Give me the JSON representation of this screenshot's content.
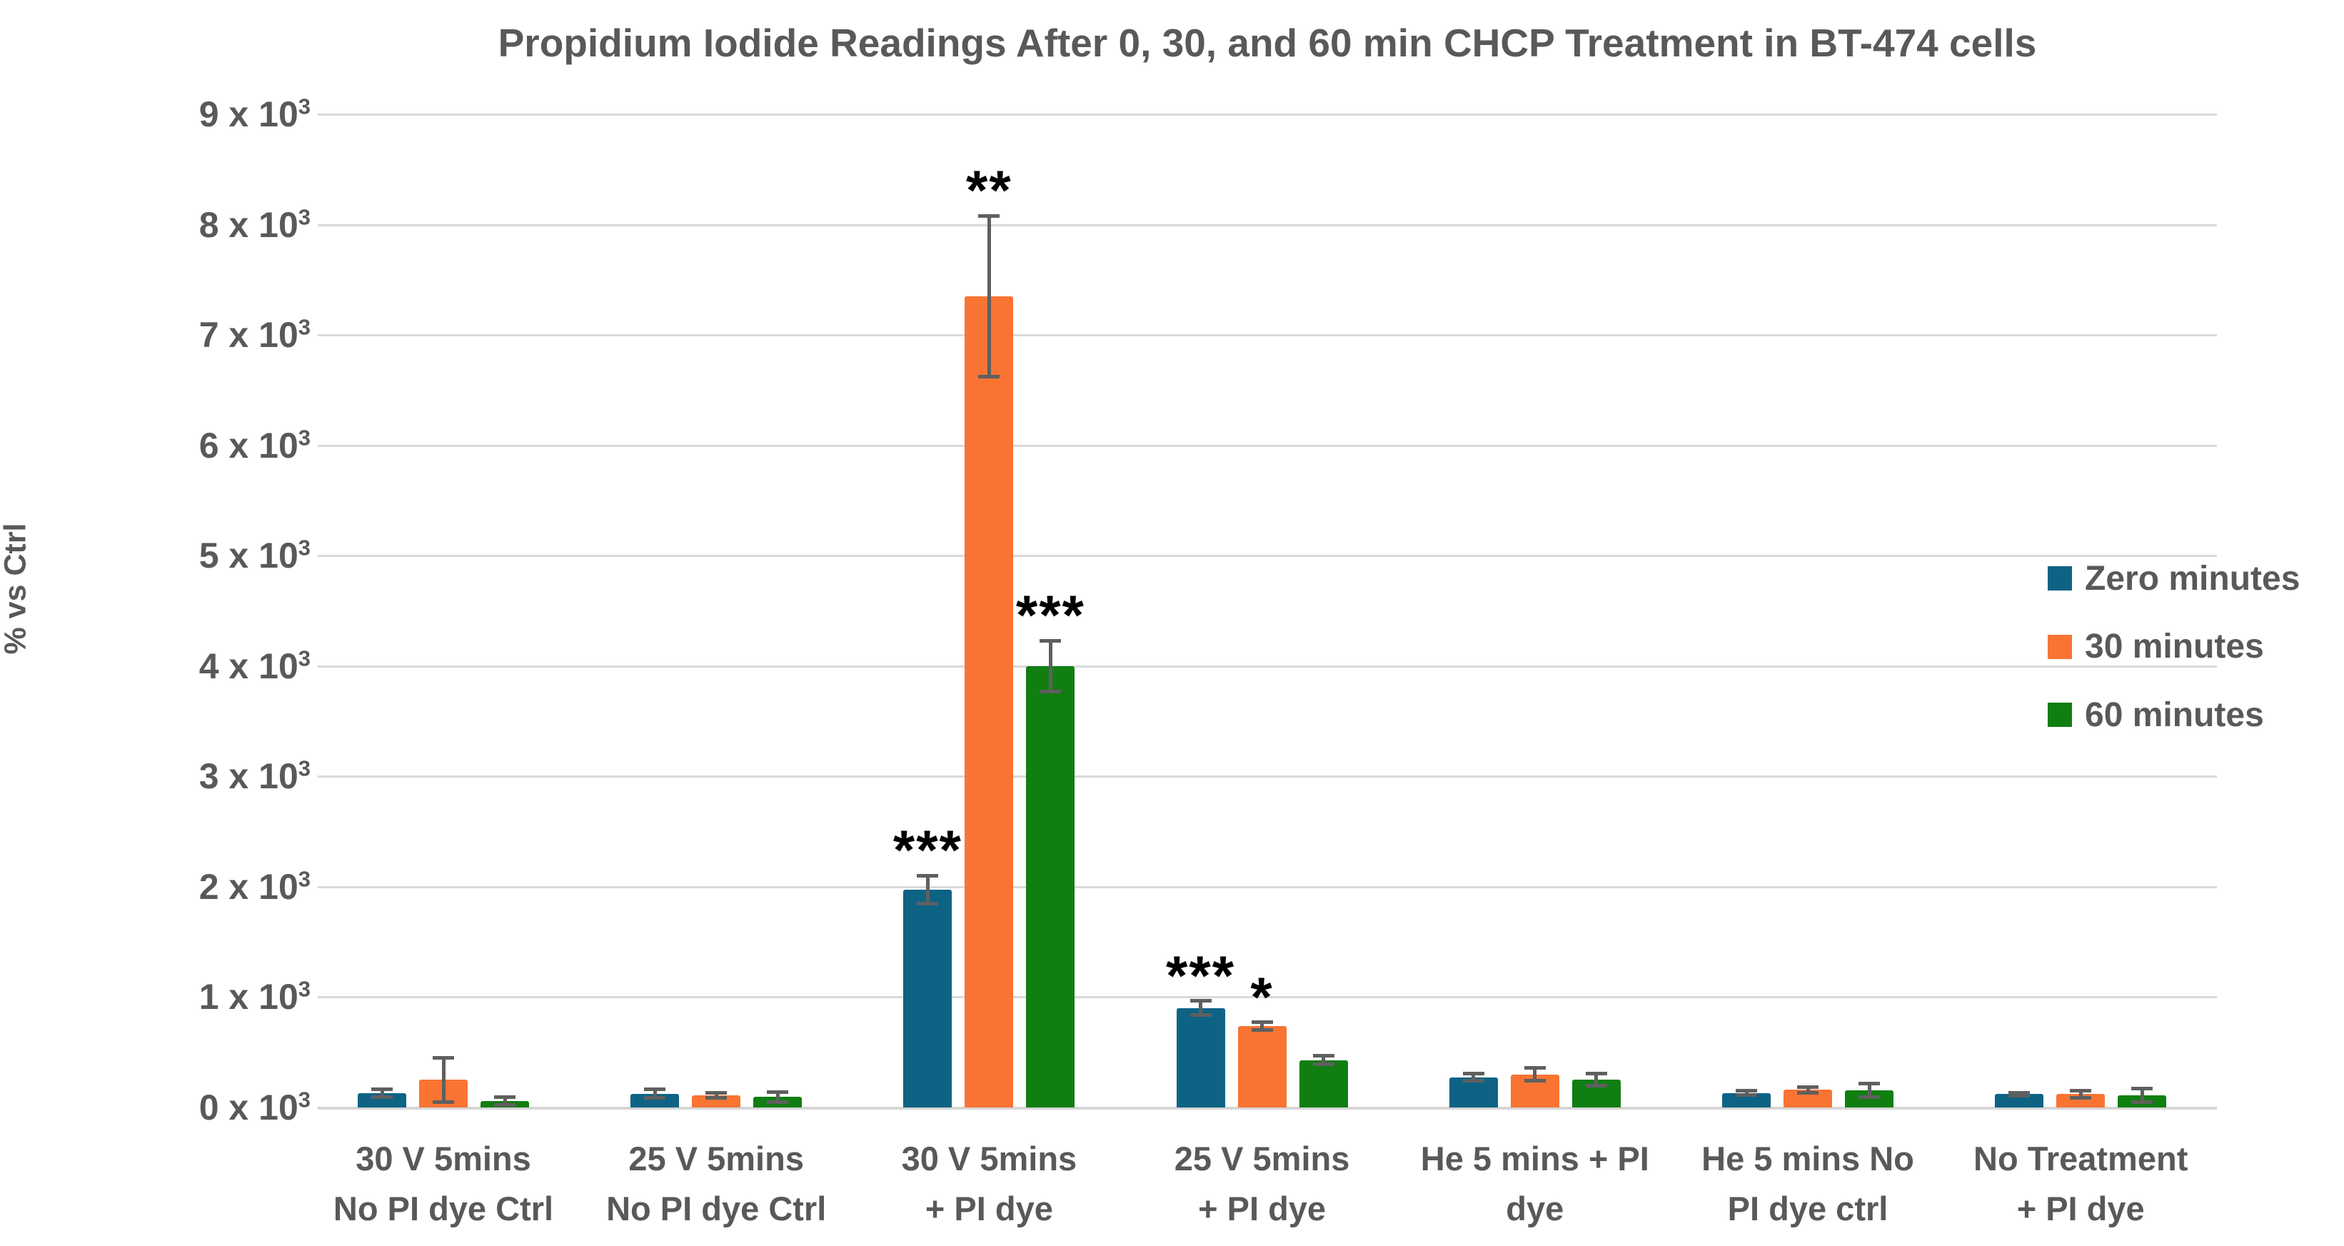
{
  "title": "Propidium Iodide Readings After 0, 30, and 60 min CHCP Treatment in BT-474 cells",
  "y_axis": {
    "label": "% vs Ctrl",
    "ticks": [
      "9 x 10^3",
      "8 x 10^3",
      "7 x 10^3",
      "6 x 10^3",
      "5 x 10^3",
      "4 x 10^3",
      "3 x 10^3",
      "2 x 10^3",
      "1 x 10^3",
      "0 x 10^3"
    ]
  },
  "legend": {
    "items": [
      {
        "label": "Zero minutes",
        "color": "#0e6385"
      },
      {
        "label": "30 minutes",
        "color": "#f97433"
      },
      {
        "label": "60 minutes",
        "color": "#107e11"
      }
    ]
  },
  "colors": {
    "text_gray": "#595959",
    "gridline": "#d9d9d9",
    "error_bar": "#5f5f5f",
    "significance": "#000000"
  },
  "chart_data": {
    "type": "bar",
    "title": "Propidium Iodide Readings After 0, 30, and 60 min CHCP Treatment in BT-474 cells",
    "xlabel": "",
    "ylabel": "% vs Ctrl",
    "ylim": [
      0,
      9000
    ],
    "grid": true,
    "legend_position": "right",
    "categories": [
      "30 V 5mins\nNo PI dye Ctrl",
      "25 V 5mins\nNo PI dye Ctrl",
      "30 V 5mins\n+ PI dye",
      "25 V 5mins\n+ PI dye",
      "He 5 mins + PI\ndye",
      "He 5 mins No\nPI dye ctrl",
      "No Treatment\n+ PI dye"
    ],
    "series": [
      {
        "name": "Zero minutes",
        "color": "#0e6385",
        "values": [
          130,
          125,
          1975,
          900,
          275,
          130,
          120
        ],
        "errors": [
          35,
          40,
          125,
          65,
          30,
          20,
          15
        ]
      },
      {
        "name": "30 minutes",
        "color": "#f97433",
        "values": [
          250,
          110,
          7350,
          735,
          300,
          160,
          120
        ],
        "errors": [
          200,
          25,
          730,
          35,
          60,
          25,
          30
        ]
      },
      {
        "name": "60 minutes",
        "color": "#107e11",
        "values": [
          60,
          95,
          4000,
          430,
          250,
          155,
          110
        ],
        "errors": [
          35,
          45,
          230,
          40,
          55,
          60,
          60
        ]
      }
    ],
    "significance": [
      {
        "category_index": 2,
        "series_index": 0,
        "stars": "***"
      },
      {
        "category_index": 2,
        "series_index": 1,
        "stars": "**"
      },
      {
        "category_index": 2,
        "series_index": 2,
        "stars": "***"
      },
      {
        "category_index": 3,
        "series_index": 0,
        "stars": "***"
      },
      {
        "category_index": 3,
        "series_index": 1,
        "stars": "*"
      }
    ]
  }
}
